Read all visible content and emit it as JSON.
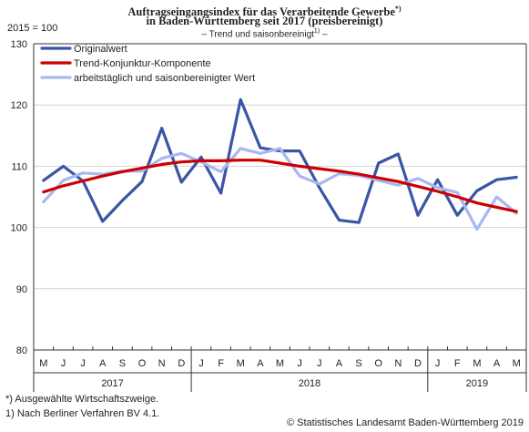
{
  "header": {
    "title_line1": "Auftragseingangsindex für das Verarbeitende Gewerbe",
    "title_line1_mark": "*)",
    "title_line2": "in Baden-Württemberg seit 2017 (preisbereinigt)",
    "subtitle_pre": "– Trend und saisonbereinigt",
    "subtitle_mark": "1)",
    "subtitle_post": " –"
  },
  "unit_label": "2015 = 100",
  "footnotes": {
    "note1": "*) Ausgewählte Wirtschaftszweige.",
    "note2": "1) Nach Berliner Verfahren BV 4.1."
  },
  "source": "© Statistisches Landesamt Baden-Württemberg 2019",
  "colors": {
    "originalwert": "#3a55a4",
    "trend": "#cc0000",
    "arbeitstaeglich": "#a8b8ef",
    "grid": "#d4d4d4",
    "axis": "#333333"
  },
  "chart_data": {
    "type": "line",
    "title": "Auftragseingangsindex für das Verarbeitende Gewerbe in Baden-Württemberg seit 2017 (preisbereinigt)",
    "ylabel": "2015 = 100",
    "ylim": [
      80,
      130
    ],
    "yticks": [
      80,
      90,
      100,
      110,
      120,
      130
    ],
    "grid": true,
    "legend_position": "top-left",
    "month_labels": [
      "M",
      "J",
      "J",
      "A",
      "S",
      "O",
      "N",
      "D",
      "J",
      "F",
      "M",
      "A",
      "M",
      "J",
      "J",
      "A",
      "S",
      "O",
      "N",
      "D",
      "J",
      "F",
      "M",
      "A",
      "M"
    ],
    "year_groups": [
      {
        "label": "2017",
        "count": 8
      },
      {
        "label": "2018",
        "count": 12
      },
      {
        "label": "2019",
        "count": 5
      }
    ],
    "series": [
      {
        "name": "Originalwert",
        "color": "#3a55a4",
        "values": [
          107.7,
          110.0,
          107.6,
          101.0,
          104.4,
          107.5,
          116.2,
          107.4,
          111.5,
          105.6,
          120.9,
          113.0,
          112.5,
          112.5,
          106.5,
          101.2,
          100.8,
          110.5,
          112.0,
          102.0,
          107.8,
          102.0,
          106.0,
          107.8,
          108.2
        ]
      },
      {
        "name": "Trend-Konjunktur-Komponente",
        "color": "#cc0000",
        "values": [
          105.8,
          106.8,
          107.6,
          108.4,
          109.1,
          109.7,
          110.3,
          110.7,
          110.9,
          110.9,
          111.0,
          111.0,
          110.5,
          110.0,
          109.6,
          109.2,
          108.7,
          108.1,
          107.5,
          106.7,
          105.9,
          105.0,
          104.0,
          103.3,
          102.6
        ]
      },
      {
        "name": "arbeitstäglich und saisonbereinigter Wert",
        "color": "#a8b8ef",
        "values": [
          104.2,
          107.7,
          108.9,
          108.7,
          109.2,
          109.2,
          111.3,
          112.1,
          110.7,
          109.1,
          112.9,
          112.1,
          112.9,
          108.4,
          107.1,
          108.8,
          108.5,
          107.7,
          106.9,
          108.0,
          106.5,
          105.7,
          99.7,
          105.0,
          102.3
        ]
      }
    ]
  }
}
